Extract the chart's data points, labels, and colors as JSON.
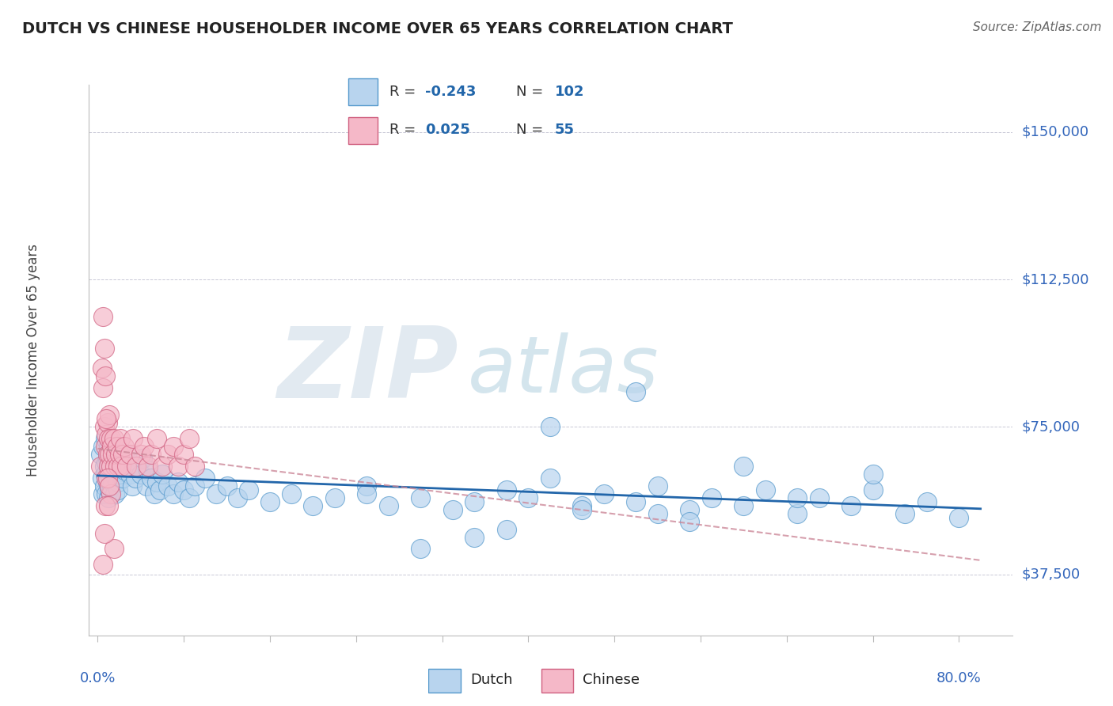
{
  "title": "DUTCH VS CHINESE HOUSEHOLDER INCOME OVER 65 YEARS CORRELATION CHART",
  "source": "Source: ZipAtlas.com",
  "ylabel": "Householder Income Over 65 years",
  "ytick_labels": [
    "$37,500",
    "$75,000",
    "$112,500",
    "$150,000"
  ],
  "ytick_values": [
    37500,
    75000,
    112500,
    150000
  ],
  "ymin": 22000,
  "ymax": 162000,
  "xmin": -0.008,
  "xmax": 0.85,
  "legend_dutch_R": "-0.243",
  "legend_dutch_N": "102",
  "legend_chinese_R": "0.025",
  "legend_chinese_N": "55",
  "dutch_color": "#b8d4ee",
  "dutch_edge_color": "#5599cc",
  "chinese_color": "#f5b8c8",
  "chinese_edge_color": "#d06080",
  "dutch_line_color": "#2266aa",
  "chinese_line_color": "#cc8899",
  "watermark_zip": "ZIP",
  "watermark_atlas": "atlas",
  "background_color": "#ffffff",
  "dutch_x": [
    0.003,
    0.004,
    0.005,
    0.005,
    0.006,
    0.006,
    0.007,
    0.007,
    0.008,
    0.008,
    0.009,
    0.009,
    0.01,
    0.01,
    0.01,
    0.011,
    0.011,
    0.012,
    0.012,
    0.013,
    0.013,
    0.014,
    0.014,
    0.015,
    0.015,
    0.016,
    0.016,
    0.017,
    0.017,
    0.018,
    0.018,
    0.019,
    0.019,
    0.02,
    0.02,
    0.022,
    0.023,
    0.025,
    0.027,
    0.03,
    0.032,
    0.035,
    0.037,
    0.04,
    0.042,
    0.045,
    0.047,
    0.05,
    0.053,
    0.055,
    0.058,
    0.06,
    0.065,
    0.07,
    0.075,
    0.08,
    0.085,
    0.09,
    0.1,
    0.11,
    0.12,
    0.13,
    0.14,
    0.16,
    0.18,
    0.2,
    0.22,
    0.25,
    0.27,
    0.3,
    0.33,
    0.35,
    0.38,
    0.4,
    0.42,
    0.45,
    0.47,
    0.5,
    0.52,
    0.55,
    0.57,
    0.6,
    0.62,
    0.65,
    0.67,
    0.7,
    0.72,
    0.75,
    0.77,
    0.8,
    0.5,
    0.6,
    0.42,
    0.72,
    0.35,
    0.55,
    0.3,
    0.45,
    0.65,
    0.38,
    0.25,
    0.52
  ],
  "dutch_y": [
    68000,
    62000,
    70000,
    58000,
    65000,
    60000,
    63000,
    72000,
    66000,
    58000,
    61000,
    67000,
    64000,
    57000,
    70000,
    63000,
    59000,
    65000,
    68000,
    60000,
    64000,
    67000,
    61000,
    65000,
    70000,
    63000,
    58000,
    66000,
    62000,
    64000,
    68000,
    61000,
    59000,
    65000,
    63000,
    67000,
    62000,
    64000,
    68000,
    63000,
    60000,
    62000,
    65000,
    63000,
    67000,
    60000,
    64000,
    62000,
    58000,
    61000,
    59000,
    63000,
    60000,
    58000,
    61000,
    59000,
    57000,
    60000,
    62000,
    58000,
    60000,
    57000,
    59000,
    56000,
    58000,
    55000,
    57000,
    60000,
    55000,
    57000,
    54000,
    56000,
    59000,
    57000,
    62000,
    55000,
    58000,
    56000,
    60000,
    54000,
    57000,
    55000,
    59000,
    53000,
    57000,
    55000,
    59000,
    53000,
    56000,
    52000,
    84000,
    65000,
    75000,
    63000,
    47000,
    51000,
    44000,
    54000,
    57000,
    49000,
    58000,
    53000
  ],
  "chinese_x": [
    0.003,
    0.004,
    0.005,
    0.005,
    0.006,
    0.006,
    0.007,
    0.007,
    0.008,
    0.008,
    0.009,
    0.009,
    0.01,
    0.01,
    0.011,
    0.011,
    0.012,
    0.012,
    0.013,
    0.014,
    0.015,
    0.016,
    0.017,
    0.018,
    0.019,
    0.02,
    0.021,
    0.022,
    0.023,
    0.025,
    0.027,
    0.03,
    0.033,
    0.036,
    0.04,
    0.043,
    0.047,
    0.05,
    0.055,
    0.06,
    0.065,
    0.07,
    0.075,
    0.08,
    0.085,
    0.09,
    0.015,
    0.012,
    0.008,
    0.009,
    0.007,
    0.006,
    0.005,
    0.01,
    0.011
  ],
  "chinese_y": [
    65000,
    90000,
    103000,
    85000,
    95000,
    75000,
    88000,
    70000,
    73000,
    62000,
    68000,
    76000,
    72000,
    65000,
    78000,
    68000,
    72000,
    65000,
    70000,
    68000,
    72000,
    65000,
    68000,
    70000,
    65000,
    68000,
    72000,
    65000,
    68000,
    70000,
    65000,
    68000,
    72000,
    65000,
    68000,
    70000,
    65000,
    68000,
    72000,
    65000,
    68000,
    70000,
    65000,
    68000,
    72000,
    65000,
    44000,
    58000,
    77000,
    62000,
    55000,
    48000,
    40000,
    55000,
    60000
  ]
}
